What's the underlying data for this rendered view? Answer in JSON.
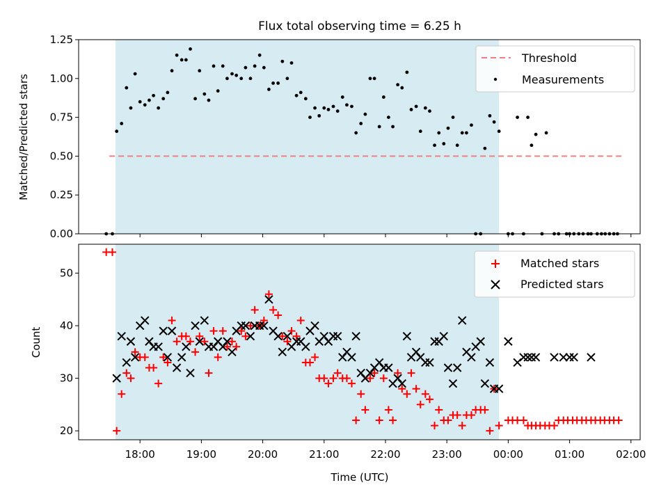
{
  "chart_data": {
    "title": "Flux total observing time = 6.25 h",
    "observing_window": {
      "start": 17.6,
      "end": 23.85,
      "color": "#add8e6"
    },
    "xlabel": "Time (UTC)",
    "xlim": [
      17.0,
      26.15
    ],
    "xticks": [
      {
        "value": 18,
        "label": "18:00"
      },
      {
        "value": 19,
        "label": "19:00"
      },
      {
        "value": 20,
        "label": "20:00"
      },
      {
        "value": 21,
        "label": "21:00"
      },
      {
        "value": 22,
        "label": "22:00"
      },
      {
        "value": 23,
        "label": "23:00"
      },
      {
        "value": 24,
        "label": "00:00"
      },
      {
        "value": 25,
        "label": "01:00"
      },
      {
        "value": 26,
        "label": "02:00"
      }
    ],
    "panels": [
      {
        "type": "scatter",
        "ylabel": "Matched/Predicted stars",
        "ylim": [
          0.0,
          1.25
        ],
        "yticks": [
          {
            "value": 0,
            "label": "0.00"
          },
          {
            "value": 0.25,
            "label": "0.25"
          },
          {
            "value": 0.5,
            "label": "0.50"
          },
          {
            "value": 0.75,
            "label": "0.75"
          },
          {
            "value": 1.0,
            "label": "1.00"
          },
          {
            "value": 1.25,
            "label": "1.25"
          }
        ],
        "threshold": {
          "name": "Threshold",
          "y": 0.5,
          "x_range": [
            17.5,
            25.85
          ],
          "color": "#f08080"
        },
        "measurements": {
          "name": "Measurements",
          "color": "#000000",
          "x": [
            17.45,
            17.55,
            17.62,
            17.7,
            17.78,
            17.85,
            17.92,
            18.0,
            18.08,
            18.15,
            18.22,
            18.3,
            18.38,
            18.45,
            18.52,
            18.6,
            18.68,
            18.75,
            18.82,
            18.9,
            18.97,
            19.05,
            19.12,
            19.2,
            19.27,
            19.35,
            19.42,
            19.5,
            19.57,
            19.65,
            19.72,
            19.8,
            19.87,
            19.95,
            20.02,
            20.1,
            20.17,
            20.25,
            20.32,
            20.4,
            20.47,
            20.55,
            20.62,
            20.7,
            20.77,
            20.85,
            20.92,
            21.0,
            21.07,
            21.15,
            21.22,
            21.3,
            21.37,
            21.45,
            21.52,
            21.6,
            21.67,
            21.75,
            21.82,
            21.9,
            21.97,
            22.05,
            22.12,
            22.2,
            22.27,
            22.35,
            22.42,
            22.5,
            22.57,
            22.65,
            22.72,
            22.8,
            22.87,
            22.95,
            23.02,
            23.1,
            23.17,
            23.25,
            23.32,
            23.4,
            23.47,
            23.55,
            23.62,
            23.7,
            23.77,
            23.85,
            24.0,
            24.07,
            24.15,
            24.25,
            24.32,
            24.38,
            24.45,
            24.55,
            24.62,
            24.75,
            24.82,
            24.95,
            25.0,
            25.07,
            25.15,
            25.22,
            25.3,
            25.35,
            25.45,
            25.52,
            25.58,
            25.65,
            25.72,
            25.78
          ],
          "y": [
            0.0,
            0.0,
            0.66,
            0.71,
            0.94,
            0.81,
            1.03,
            0.85,
            0.83,
            0.86,
            0.89,
            0.81,
            0.87,
            0.91,
            1.05,
            1.15,
            1.12,
            1.12,
            1.19,
            0.87,
            1.05,
            0.9,
            0.86,
            1.08,
            0.92,
            1.08,
            1.0,
            1.03,
            1.02,
            1.0,
            1.07,
            1.0,
            1.08,
            1.15,
            1.07,
            0.93,
            0.97,
            0.97,
            1.11,
            1.0,
            1.1,
            0.89,
            0.91,
            0.87,
            0.75,
            0.81,
            0.76,
            0.81,
            0.8,
            0.82,
            0.79,
            0.88,
            0.83,
            0.82,
            0.65,
            0.71,
            0.77,
            1.0,
            1.0,
            0.69,
            0.88,
            0.75,
            0.69,
            0.96,
            0.94,
            1.04,
            0.8,
            0.82,
            0.66,
            0.81,
            0.79,
            0.57,
            0.65,
            0.58,
            0.68,
            0.75,
            0.57,
            0.65,
            0.65,
            0.7,
            0.0,
            0.0,
            0.55,
            0.76,
            0.72,
            0.66,
            0.0,
            0.0,
            0.75,
            0.0,
            0.75,
            0.57,
            0.64,
            0.0,
            0.65,
            0.0,
            0.0,
            0.0,
            0.0,
            0.0,
            0.0,
            0.0,
            0.0,
            0.0,
            0.0,
            0.0,
            0.0,
            0.0,
            0.0,
            0.0
          ]
        },
        "legend": {
          "position": "top-right",
          "entries": [
            "Threshold",
            "Measurements"
          ]
        }
      },
      {
        "type": "scatter",
        "ylabel": "Count",
        "ylim": [
          18.3,
          55.5
        ],
        "yticks": [
          {
            "value": 20,
            "label": "20"
          },
          {
            "value": 30,
            "label": "30"
          },
          {
            "value": 40,
            "label": "40"
          },
          {
            "value": 50,
            "label": "50"
          }
        ],
        "series": [
          {
            "name": "Matched stars",
            "marker": "plus",
            "color": "#ff0000",
            "x": [
              17.45,
              17.55,
              17.62,
              17.7,
              17.78,
              17.85,
              17.92,
              18.0,
              18.08,
              18.15,
              18.22,
              18.3,
              18.38,
              18.45,
              18.52,
              18.6,
              18.68,
              18.75,
              18.82,
              18.9,
              18.97,
              19.05,
              19.12,
              19.2,
              19.27,
              19.35,
              19.42,
              19.5,
              19.57,
              19.65,
              19.72,
              19.8,
              19.87,
              19.95,
              20.02,
              20.1,
              20.17,
              20.25,
              20.32,
              20.4,
              20.47,
              20.55,
              20.62,
              20.7,
              20.77,
              20.85,
              20.92,
              21.0,
              21.07,
              21.15,
              21.22,
              21.3,
              21.37,
              21.45,
              21.52,
              21.6,
              21.67,
              21.75,
              21.82,
              21.9,
              21.97,
              22.05,
              22.12,
              22.2,
              22.27,
              22.35,
              22.42,
              22.5,
              22.57,
              22.65,
              22.72,
              22.8,
              22.87,
              22.95,
              23.02,
              23.1,
              23.17,
              23.25,
              23.32,
              23.4,
              23.47,
              23.55,
              23.62,
              23.7,
              23.77,
              23.85,
              24.0,
              24.07,
              24.15,
              24.25,
              24.32,
              24.38,
              24.45,
              24.52,
              24.6,
              24.67,
              24.75,
              24.82,
              24.9,
              24.97,
              25.05,
              25.12,
              25.2,
              25.27,
              25.35,
              25.42,
              25.5,
              25.57,
              25.65,
              25.72,
              25.8
            ],
            "y": [
              54,
              54,
              20,
              27,
              31,
              30,
              35,
              34,
              34,
              32,
              32,
              29,
              34,
              33,
              41,
              37,
              38,
              38,
              37,
              35,
              38,
              37,
              31,
              39,
              34,
              39,
              36,
              37,
              36,
              39,
              38,
              40,
              43,
              40,
              41,
              46,
              43,
              42,
              38,
              37,
              39,
              38,
              41,
              33,
              33,
              34,
              30,
              30,
              29,
              30,
              31,
              30,
              30,
              29,
              22,
              27,
              24,
              30,
              31,
              22,
              30,
              24,
              22,
              31,
              28,
              27,
              31,
              28,
              25,
              27,
              26,
              21,
              24,
              22,
              22,
              23,
              23,
              21,
              23,
              23,
              24,
              24,
              24,
              20,
              28,
              21,
              22,
              22,
              22,
              22,
              21,
              21,
              21,
              21,
              21,
              21,
              21,
              22,
              22,
              22,
              22,
              22,
              22,
              22,
              22,
              22,
              22,
              22,
              22,
              22,
              22
            ]
          },
          {
            "name": "Predicted stars",
            "marker": "x",
            "color": "#000000",
            "x": [
              17.62,
              17.7,
              17.78,
              17.85,
              17.92,
              18.0,
              18.08,
              18.15,
              18.22,
              18.3,
              18.38,
              18.45,
              18.52,
              18.6,
              18.68,
              18.75,
              18.82,
              18.9,
              18.97,
              19.05,
              19.12,
              19.2,
              19.27,
              19.35,
              19.42,
              19.5,
              19.57,
              19.65,
              19.72,
              19.8,
              19.87,
              19.95,
              20.02,
              20.1,
              20.17,
              20.25,
              20.32,
              20.4,
              20.47,
              20.55,
              20.62,
              20.7,
              20.77,
              20.85,
              20.92,
              21.0,
              21.07,
              21.15,
              21.22,
              21.3,
              21.37,
              21.45,
              21.52,
              21.6,
              21.67,
              21.75,
              21.82,
              21.9,
              21.97,
              22.05,
              22.12,
              22.2,
              22.27,
              22.35,
              22.42,
              22.5,
              22.57,
              22.65,
              22.72,
              22.8,
              22.87,
              22.95,
              23.02,
              23.1,
              23.17,
              23.25,
              23.32,
              23.4,
              23.47,
              23.55,
              23.62,
              23.7,
              23.77,
              23.85,
              24.0,
              24.15,
              24.25,
              24.32,
              24.38,
              24.45,
              24.75,
              24.9,
              25.0,
              25.07,
              25.35
            ],
            "y": [
              30,
              38,
              33,
              37,
              34,
              40,
              41,
              37,
              36,
              36,
              39,
              34,
              39,
              32,
              34,
              36,
              31,
              40,
              37,
              41,
              36,
              36,
              37,
              36,
              37,
              35,
              39,
              40,
              40,
              38,
              40,
              40,
              40,
              45,
              39,
              38,
              35,
              38,
              36,
              37,
              37,
              36,
              39,
              40,
              37,
              38,
              37,
              38,
              38,
              34,
              35,
              34,
              38,
              31,
              30,
              31,
              32,
              33,
              32,
              32,
              29,
              30,
              29,
              38,
              34,
              35,
              34,
              33,
              33,
              37,
              37,
              38,
              32,
              29,
              32,
              41,
              35,
              34,
              36,
              37,
              29,
              33,
              28,
              28,
              37,
              33,
              34,
              34,
              34,
              34,
              34,
              34,
              34,
              34,
              34
            ]
          }
        ],
        "legend": {
          "position": "top-right",
          "entries": [
            "Matched stars",
            "Predicted stars"
          ]
        }
      }
    ]
  }
}
